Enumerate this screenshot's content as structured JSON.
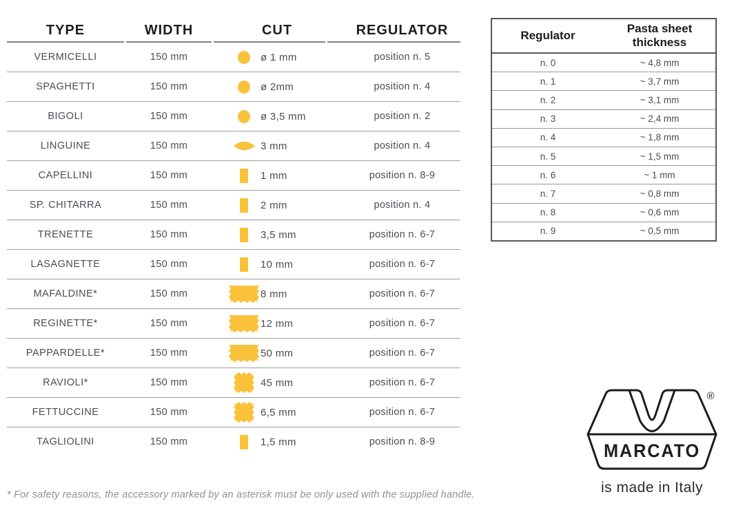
{
  "left_table": {
    "headers": [
      "TYPE",
      "WIDTH",
      "CUT",
      "REGULATOR"
    ],
    "rows": [
      {
        "type": "VERMICELLI",
        "width": "150 mm",
        "icon": "circle",
        "cut": "ø 1 mm",
        "regulator": "position n. 5"
      },
      {
        "type": "SPAGHETTI",
        "width": "150 mm",
        "icon": "circle",
        "cut": "ø 2mm",
        "regulator": "position n. 4"
      },
      {
        "type": "BIGOLI",
        "width": "150 mm",
        "icon": "circle",
        "cut": "ø 3,5 mm",
        "regulator": "position n. 2"
      },
      {
        "type": "LINGUINE",
        "width": "150 mm",
        "icon": "lens",
        "cut": "3 mm",
        "regulator": "position n. 4"
      },
      {
        "type": "CAPELLINI",
        "width": "150 mm",
        "icon": "bar",
        "cut": "1 mm",
        "regulator": "position n. 8-9"
      },
      {
        "type": "SP. CHITARRA",
        "width": "150 mm",
        "icon": "bar",
        "cut": "2 mm",
        "regulator": "position n. 4"
      },
      {
        "type": "TRENETTE",
        "width": "150 mm",
        "icon": "bar",
        "cut": "3,5 mm",
        "regulator": "position n. 6-7"
      },
      {
        "type": "LASAGNETTE",
        "width": "150 mm",
        "icon": "bar",
        "cut": "10 mm",
        "regulator": "position n. 6-7"
      },
      {
        "type": "MAFALDINE*",
        "width": "150 mm",
        "icon": "ribbon",
        "cut": "8 mm",
        "regulator": "position n. 6-7"
      },
      {
        "type": "REGINETTE*",
        "width": "150 mm",
        "icon": "ribbon",
        "cut": "12 mm",
        "regulator": "position n. 6-7"
      },
      {
        "type": "PAPPARDELLE*",
        "width": "150 mm",
        "icon": "ribbon",
        "cut": "50 mm",
        "regulator": "position n. 6-7"
      },
      {
        "type": "RAVIOLI*",
        "width": "150 mm",
        "icon": "stamp",
        "cut": "45 mm",
        "regulator": "position n. 6-7"
      },
      {
        "type": "FETTUCCINE",
        "width": "150 mm",
        "icon": "stamp",
        "cut": "6,5 mm",
        "regulator": "position n. 6-7"
      },
      {
        "type": "TAGLIOLINI",
        "width": "150 mm",
        "icon": "bar",
        "cut": "1,5 mm",
        "regulator": "position n. 8-9"
      }
    ]
  },
  "regulator_table": {
    "headers": [
      "Regulator",
      "Pasta sheet thickness"
    ],
    "rows": [
      {
        "position": "n. 0",
        "thickness": "~ 4,8 mm"
      },
      {
        "position": "n. 1",
        "thickness": "~ 3,7 mm"
      },
      {
        "position": "n. 2",
        "thickness": "~ 3,1 mm"
      },
      {
        "position": "n. 3",
        "thickness": "~ 2,4 mm"
      },
      {
        "position": "n. 4",
        "thickness": "~ 1,8 mm"
      },
      {
        "position": "n. 5",
        "thickness": "~ 1,5 mm"
      },
      {
        "position": "n. 6",
        "thickness": "~ 1 mm"
      },
      {
        "position": "n. 7",
        "thickness": "~ 0,8 mm"
      },
      {
        "position": "n. 8",
        "thickness": "~ 0,6 mm"
      },
      {
        "position": "n. 9",
        "thickness": "~ 0,5 mm"
      }
    ]
  },
  "footnote": "* For safety reasons, the accessory marked by an asterisk must be only used with the supplied handle.",
  "logo": {
    "brand": "MARCATO",
    "registered": "®",
    "tagline": "is made in Italy"
  },
  "colors": {
    "accent_yellow": "#F9C23A",
    "text_dark": "#1D1D1F",
    "text_gray": "#4B4D52",
    "line_gray": "#9B9DA0",
    "border_gray": "#55575A"
  }
}
